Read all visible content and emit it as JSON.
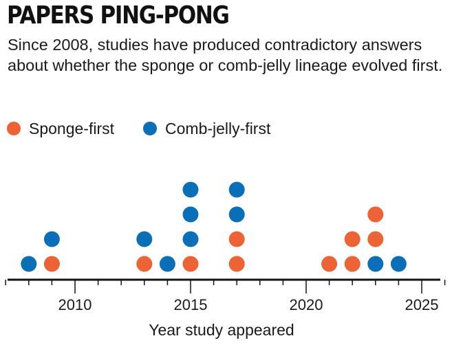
{
  "title": "PAPERS PING-PONG",
  "subtitle": "Since 2008, studies have produced contradictory answers about whether the sponge or comb-jelly lineage evolved first.",
  "colors": {
    "sponge_first": "#ec6335",
    "comb_jelly_first": "#0a6fb6",
    "axis": "#111111"
  },
  "chart_data": {
    "type": "scatter",
    "subtype": "dot-plot",
    "title": "PAPERS PING-PONG",
    "xlabel": "Year study appeared",
    "ylabel": "",
    "xlim": [
      2007,
      2026
    ],
    "xticks": [
      2010,
      2015,
      2020,
      2025
    ],
    "legend": [
      {
        "key": "sponge",
        "label": "Sponge-first"
      },
      {
        "key": "comb",
        "label": "Comb-jelly-first"
      }
    ],
    "series": [
      {
        "name": "Sponge-first",
        "key": "sponge",
        "x": [
          2009,
          2013,
          2015,
          2017,
          2017,
          2021,
          2022,
          2022,
          2023,
          2023
        ]
      },
      {
        "name": "Comb-jelly-first",
        "key": "comb",
        "x": [
          2008,
          2009,
          2013,
          2014,
          2015,
          2015,
          2015,
          2017,
          2017,
          2023,
          2024
        ]
      }
    ],
    "stacks": {
      "2008": [
        "comb"
      ],
      "2009": [
        "sponge",
        "comb"
      ],
      "2013": [
        "sponge",
        "comb"
      ],
      "2014": [
        "comb"
      ],
      "2015": [
        "sponge",
        "comb",
        "comb",
        "comb"
      ],
      "2017": [
        "sponge",
        "sponge",
        "comb",
        "comb"
      ],
      "2021": [
        "sponge"
      ],
      "2022": [
        "sponge",
        "sponge"
      ],
      "2023": [
        "comb",
        "sponge",
        "sponge"
      ],
      "2024": [
        "comb"
      ]
    }
  }
}
